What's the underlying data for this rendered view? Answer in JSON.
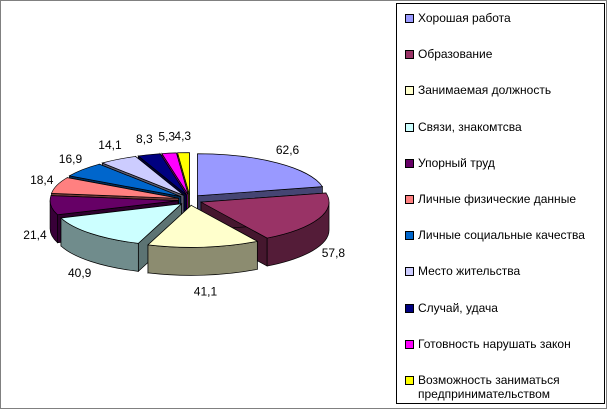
{
  "chart_data": {
    "type": "pie",
    "title": "",
    "categories": [
      "Хорошая работа",
      "Образование",
      "Занимаемая должность",
      "Связи, знакомтсва",
      "Упорный труд",
      "Личные физические данные",
      "Личные социальные качества",
      "Место жительства",
      "Случай, удача",
      "Готовность нарушать закон",
      "Возможность заниматься предпринимательством"
    ],
    "values": [
      62.6,
      57.8,
      41.1,
      40.9,
      21.4,
      18.4,
      16.9,
      14.1,
      8.3,
      5.3,
      4.3
    ],
    "value_labels": [
      "62,6",
      "57,8",
      "41,1",
      "40,9",
      "21,4",
      "18,4",
      "16,9",
      "14,1",
      "8,3",
      "5,3",
      "4,3"
    ],
    "colors": [
      "#9999ff",
      "#993366",
      "#ffffcc",
      "#ccffff",
      "#660066",
      "#ff8080",
      "#0066cc",
      "#ccccff",
      "#000080",
      "#ff00ff",
      "#ffff00"
    ],
    "style": "3d-exploded",
    "legend": "right"
  }
}
